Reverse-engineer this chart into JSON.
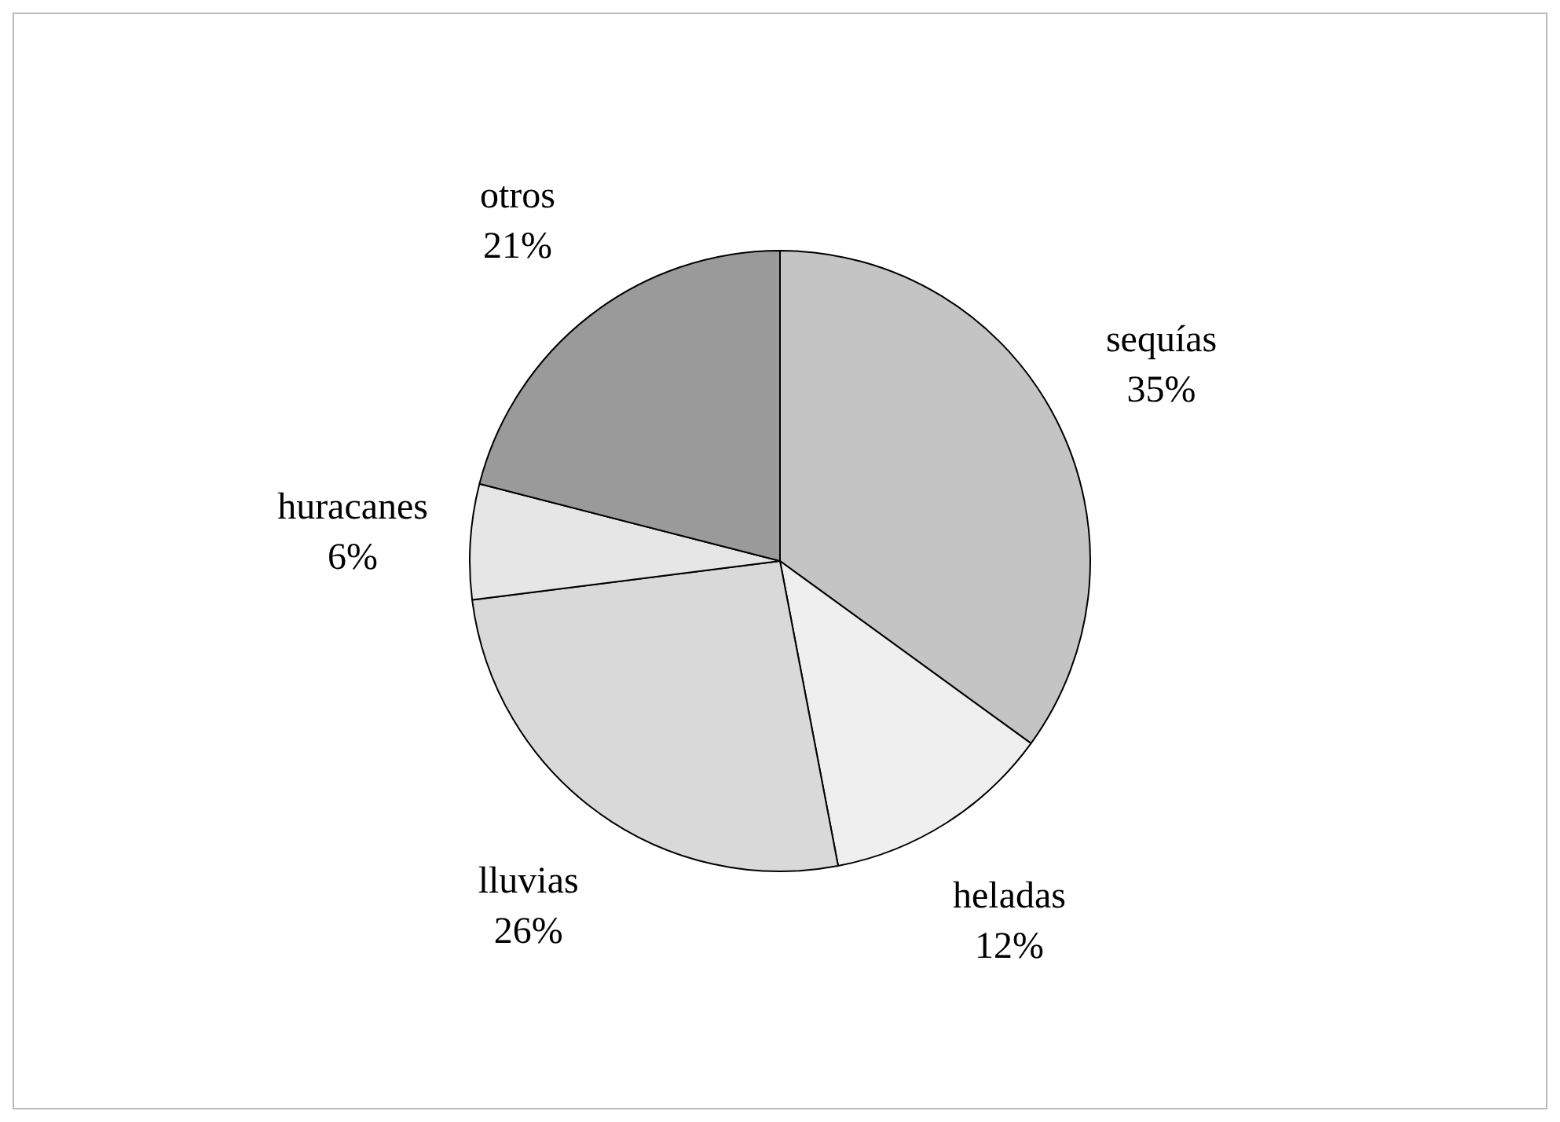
{
  "chart_data": {
    "type": "pie",
    "categories": [
      "sequías",
      "heladas",
      "lluvias",
      "huracanes",
      "otros"
    ],
    "values": [
      35,
      12,
      26,
      6,
      21
    ],
    "colors": [
      "#c4c4c4",
      "#efefef",
      "#d9d9d9",
      "#e6e6e6",
      "#9a9a9a"
    ],
    "value_labels": [
      "35%",
      "12%",
      "26%",
      "6%",
      "21%"
    ],
    "legend": false
  }
}
